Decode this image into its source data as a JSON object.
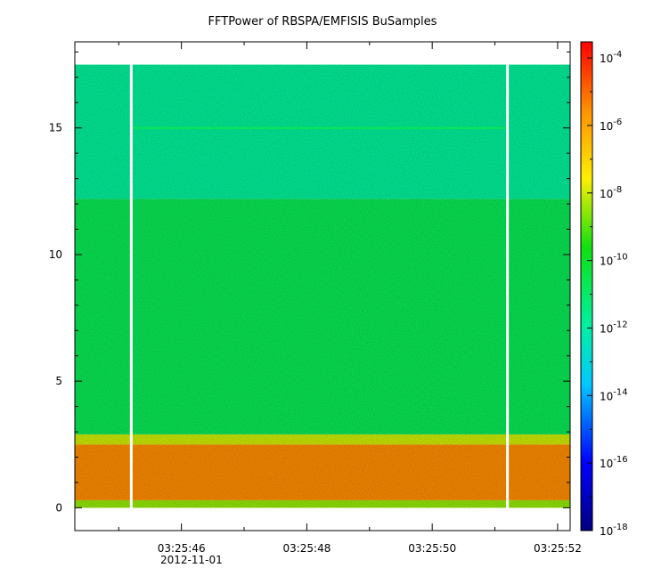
{
  "chart_data": {
    "type": "heatmap",
    "title": "FFTPower of RBSPA/EMFISIS  BuSamples",
    "x_ticks": [
      {
        "value": 46,
        "label": "03:25:46"
      },
      {
        "value": 48,
        "label": "03:25:48"
      },
      {
        "value": 50,
        "label": "03:25:50"
      },
      {
        "value": 52,
        "label": "03:25:52"
      }
    ],
    "x_date_label": "2012-11-01",
    "x_range_seconds": [
      44.3,
      52.2
    ],
    "y_ticks": [
      0,
      5,
      10,
      15
    ],
    "ylim": [
      -0.9,
      18.4
    ],
    "colorbar": {
      "scale": "log",
      "range": [
        1e-18,
        0.0003
      ],
      "ticks": [
        {
          "base": "10",
          "exp": "-4",
          "value": -4
        },
        {
          "base": "10",
          "exp": "-6",
          "value": -6
        },
        {
          "base": "10",
          "exp": "-8",
          "value": -8
        },
        {
          "base": "10",
          "exp": "-10",
          "value": -10
        },
        {
          "base": "10",
          "exp": "-12",
          "value": -12
        },
        {
          "base": "10",
          "exp": "-14",
          "value": -14
        },
        {
          "base": "10",
          "exp": "-16",
          "value": -16
        },
        {
          "base": "10",
          "exp": "-18",
          "value": -18
        }
      ]
    },
    "data_y_range": [
      0,
      17.5
    ],
    "bands": [
      {
        "y_from": 0,
        "y_to": 0.3,
        "log_power": -8.5
      },
      {
        "y_from": 0.3,
        "y_to": 2.5,
        "log_power": -5.5
      },
      {
        "y_from": 2.5,
        "y_to": 2.9,
        "log_power": -8
      },
      {
        "y_from": 2.9,
        "y_to": 12.2,
        "log_power": -10.7
      },
      {
        "y_from": 12.2,
        "y_to": 17.5,
        "log_power": -11.8
      }
    ],
    "gaps_seconds": [
      45.2,
      51.2
    ],
    "line_y": 15
  }
}
